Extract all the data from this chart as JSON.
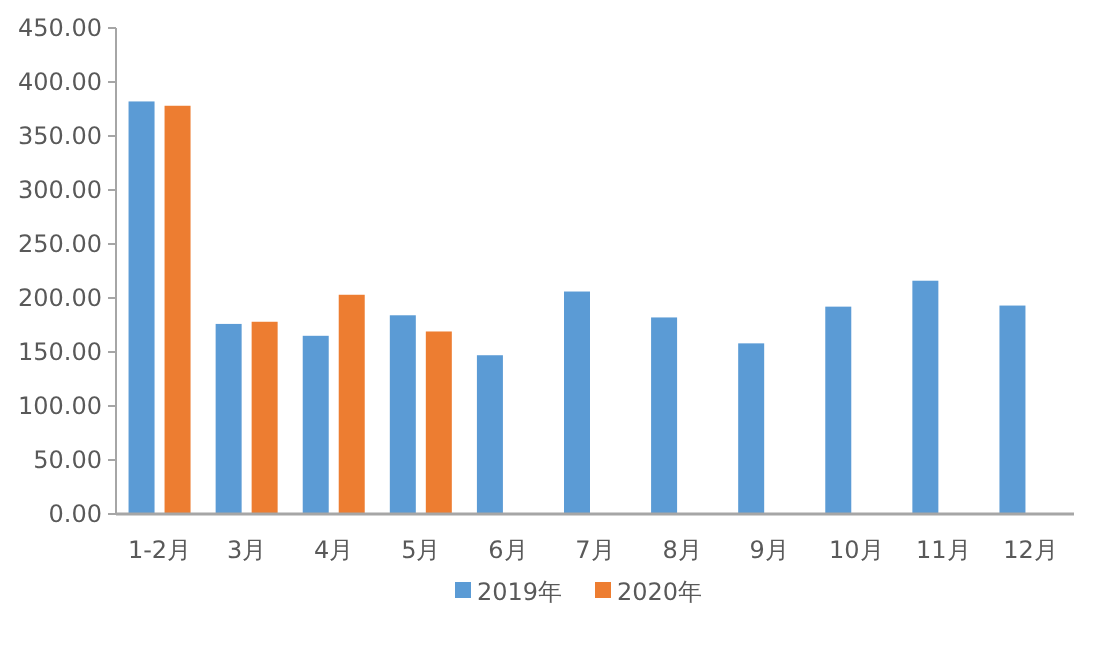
{
  "chart_data": {
    "type": "bar",
    "categories": [
      "1-2月",
      "3月",
      "4月",
      "5月",
      "6月",
      "7月",
      "8月",
      "9月",
      "10月",
      "11月",
      "12月"
    ],
    "series": [
      {
        "name": "2019年",
        "color": "#5b9bd5",
        "values": [
          382,
          176,
          165,
          184,
          147,
          206,
          182,
          158,
          192,
          216,
          193
        ]
      },
      {
        "name": "2020年",
        "color": "#ed7d31",
        "values": [
          378,
          178,
          203,
          169,
          null,
          null,
          null,
          null,
          null,
          null,
          null
        ]
      }
    ],
    "ylim": [
      0,
      450
    ],
    "yticks": [
      {
        "value": 0,
        "label": "0.00"
      },
      {
        "value": 50,
        "label": "50.00"
      },
      {
        "value": 100,
        "label": "100.00"
      },
      {
        "value": 150,
        "label": "150.00"
      },
      {
        "value": 200,
        "label": "200.00"
      },
      {
        "value": 250,
        "label": "250.00"
      },
      {
        "value": 300,
        "label": "300.00"
      },
      {
        "value": 350,
        "label": "350.00"
      },
      {
        "value": 400,
        "label": "400.00"
      },
      {
        "value": 450,
        "label": "450.00"
      }
    ],
    "grid": false,
    "legend": "bottom"
  }
}
